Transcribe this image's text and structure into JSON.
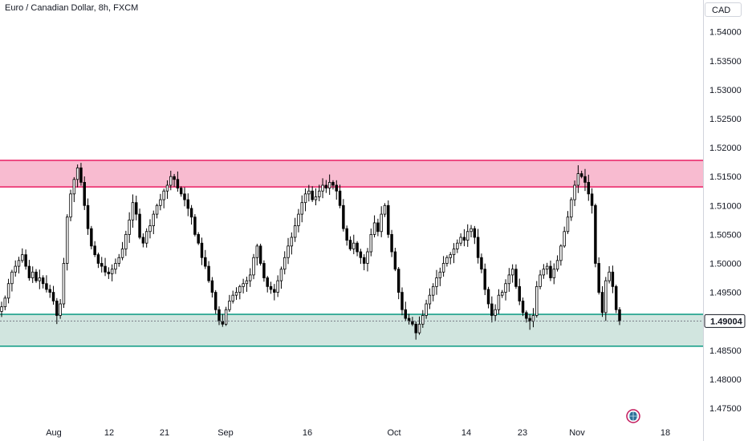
{
  "header": {
    "title": "Euro / Canadian Dollar, 8h, FXCM",
    "currency": "CAD"
  },
  "colors": {
    "resistance_fill": "#f8bbd0",
    "resistance_line": "#e91e63",
    "support_fill": "#d1e5df",
    "support_line": "#089981",
    "candle_up_body": "#ffffff",
    "candle_down_body": "#000000",
    "candle_border": "#000000",
    "axis_border": "#d1d4dc",
    "current_price_line": "#787b86"
  },
  "icons": {
    "bottom_marker": "globe-icon"
  },
  "chart_data": {
    "type": "candlestick",
    "title": "Euro / Canadian Dollar, 8h, FXCM",
    "ylim": [
      1.4725,
      1.5455
    ],
    "y_ticks": [
      "1.54000",
      "1.53500",
      "1.53000",
      "1.52500",
      "1.52000",
      "1.51500",
      "1.51000",
      "1.50500",
      "1.50000",
      "1.49500",
      "1.48500",
      "1.48000",
      "1.47500"
    ],
    "x_ticks": [
      "Aug",
      "12",
      "21",
      "Sep",
      "16",
      "Oct",
      "14",
      "23",
      "Nov",
      "18"
    ],
    "current_price": "1.49004",
    "zones": [
      {
        "name": "resistance",
        "from": 1.5132,
        "to": 1.5178
      },
      {
        "name": "support",
        "from": 1.4857,
        "to": 1.4912
      }
    ],
    "series_close": [
      1.4925,
      1.494,
      1.4965,
      1.4985,
      1.4995,
      1.5005,
      1.5015,
      1.4995,
      1.4975,
      1.4985,
      1.497,
      1.4975,
      1.4965,
      1.4955,
      1.495,
      1.4935,
      1.491,
      1.493,
      1.5,
      1.508,
      1.512,
      1.5145,
      1.5165,
      1.514,
      1.51,
      1.506,
      1.503,
      1.5015,
      1.5,
      1.4995,
      1.4985,
      1.4982,
      1.499,
      1.5,
      1.501,
      1.5025,
      1.505,
      1.5075,
      1.5105,
      1.5085,
      1.5045,
      1.5035,
      1.5055,
      1.5065,
      1.5085,
      1.51,
      1.511,
      1.5125,
      1.5135,
      1.515,
      1.5145,
      1.513,
      1.512,
      1.511,
      1.5095,
      1.508,
      1.505,
      1.5035,
      1.501,
      1.4995,
      1.497,
      1.495,
      1.492,
      1.49,
      1.4895,
      1.492,
      1.4935,
      1.4945,
      1.495,
      1.496,
      1.4965,
      1.497,
      1.498,
      1.501,
      1.503,
      1.5,
      1.4975,
      1.496,
      1.4955,
      1.495,
      1.497,
      1.499,
      1.501,
      1.503,
      1.5045,
      1.5065,
      1.5085,
      1.5105,
      1.512,
      1.5125,
      1.511,
      1.5115,
      1.5125,
      1.5135,
      1.513,
      1.514,
      1.5135,
      1.5125,
      1.51,
      1.506,
      1.504,
      1.5025,
      1.5035,
      1.502,
      1.501,
      1.5,
      1.502,
      1.505,
      1.507,
      1.5055,
      1.5085,
      1.51,
      1.505,
      1.502,
      1.499,
      1.495,
      1.492,
      1.4905,
      1.49,
      1.4895,
      1.488,
      1.4895,
      1.491,
      1.493,
      1.4945,
      1.496,
      1.4975,
      1.4985,
      1.5,
      1.501,
      1.5015,
      1.5025,
      1.5035,
      1.5045,
      1.504,
      1.5055,
      1.506,
      1.5045,
      1.501,
      1.499,
      1.4955,
      1.493,
      1.491,
      1.492,
      1.4945,
      1.495,
      1.4965,
      1.498,
      1.499,
      1.496,
      1.4935,
      1.4915,
      1.4905,
      1.49,
      1.491,
      1.496,
      1.498,
      1.499,
      1.4995,
      1.4975,
      1.499,
      1.5005,
      1.503,
      1.5055,
      1.508,
      1.511,
      1.5135,
      1.5155,
      1.515,
      1.514,
      1.512,
      1.51,
      1.5,
      1.495,
      1.4915,
      1.497,
      1.4985,
      1.496,
      1.492,
      1.49004
    ]
  }
}
